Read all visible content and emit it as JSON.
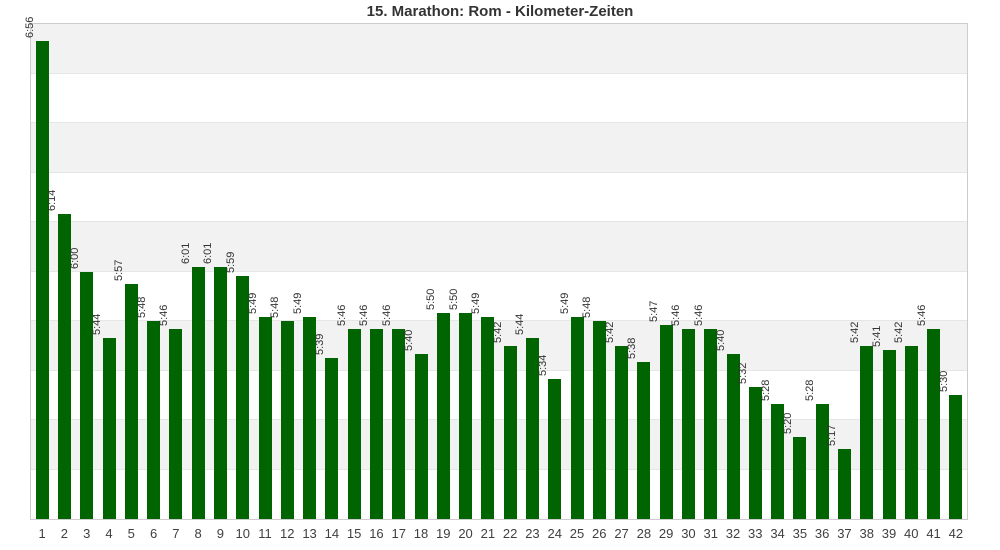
{
  "chart_data": {
    "type": "bar",
    "title": "15. Marathon: Rom - Kilometer-Zeiten",
    "xlabel": "",
    "ylabel": "",
    "categories": [
      1,
      2,
      3,
      4,
      5,
      6,
      7,
      8,
      9,
      10,
      11,
      12,
      13,
      14,
      15,
      16,
      17,
      18,
      19,
      20,
      21,
      22,
      23,
      24,
      25,
      26,
      27,
      28,
      29,
      30,
      31,
      32,
      33,
      34,
      35,
      36,
      37,
      38,
      39,
      40,
      41,
      42
    ],
    "values": [
      "6:56",
      "6:14",
      "6:00",
      "5:44",
      "5:57",
      "5:48",
      "5:46",
      "6:01",
      "6:01",
      "5:59",
      "5:49",
      "5:48",
      "5:49",
      "5:39",
      "5:46",
      "5:46",
      "5:46",
      "5:40",
      "5:50",
      "5:50",
      "5:49",
      "5:42",
      "5:44",
      "5:34",
      "5:49",
      "5:48",
      "5:42",
      "5:38",
      "5:47",
      "5:46",
      "5:46",
      "5:40",
      "5:32",
      "5:28",
      "5:20",
      "5:28",
      "5:17",
      "5:42",
      "5:41",
      "5:42",
      "5:46",
      "5:30"
    ],
    "value_unit": "min:sec per km",
    "y_axis": {
      "min": "5:00",
      "max": "7:00",
      "band_interval_seconds": 12,
      "tick_labels_visible": false
    },
    "legend": "none",
    "grid": "alternating-bands",
    "colors": {
      "bar": "#006400",
      "band_odd": "#f2f2f2",
      "band_even": "#ffffff",
      "gridline": "#e6e6e6",
      "plot_border": "#cccccc",
      "title_text": "#333333",
      "value_label_text": "#333333",
      "tick_label_text": "#404040"
    }
  }
}
